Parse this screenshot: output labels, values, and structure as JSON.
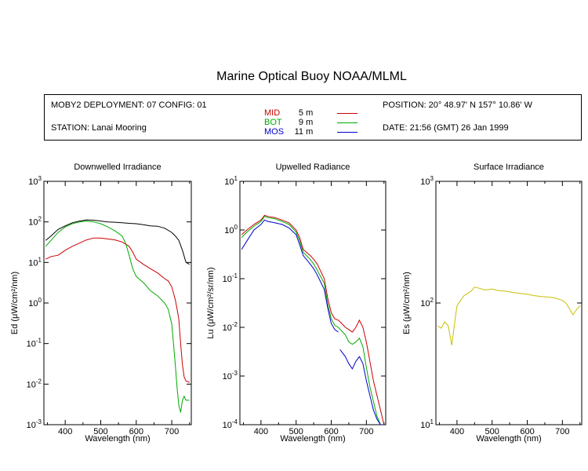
{
  "header": {
    "title": "Marine Optical Buoy NOAA/MLML",
    "deployment": "MOBY2 DEPLOYMENT: 07 CONFIG: 01",
    "station": "STATION: Lanai Mooring",
    "position": "POSITION: 20° 48.97' N   157° 10.86' W",
    "date": "DATE: 21:56 (GMT) 26 Jan 1999"
  },
  "legend": [
    {
      "name": "MID",
      "depth": "5",
      "unit": "m",
      "color": "#cc0000"
    },
    {
      "name": "BOT",
      "depth": "9",
      "unit": "m",
      "color": "#00aa00"
    },
    {
      "name": "MOS",
      "depth": "11",
      "unit": "m",
      "color": "#0000cc"
    }
  ],
  "chart_data": [
    {
      "type": "line",
      "title": "Downwelled Irradiance",
      "xlabel": "Wavelength (nm)",
      "ylabel": "Ed  (μW/cm²/nm)",
      "xlim": [
        340,
        755
      ],
      "ylim": [
        0.001,
        1000
      ],
      "yscale": "log",
      "xticks": [
        400,
        500,
        600,
        700
      ],
      "yticks": [
        {
          "base": "10",
          "exp": "-3",
          "value": 0.001
        },
        {
          "base": "10",
          "exp": "-2",
          "value": 0.01
        },
        {
          "base": "10",
          "exp": "-1",
          "value": 0.1
        },
        {
          "base": "10",
          "exp": "0",
          "value": 1
        },
        {
          "base": "10",
          "exp": "1",
          "value": 10
        },
        {
          "base": "10",
          "exp": "2",
          "value": 100
        },
        {
          "base": "10",
          "exp": "3",
          "value": 1000
        }
      ],
      "series": [
        {
          "name": "MOS",
          "color": "#000000",
          "x": [
            345,
            360,
            380,
            400,
            420,
            440,
            460,
            480,
            500,
            520,
            540,
            560,
            580,
            600,
            620,
            640,
            660,
            680,
            700,
            710,
            720,
            730,
            740,
            750
          ],
          "y": [
            35,
            45,
            65,
            80,
            95,
            105,
            112,
            110,
            105,
            100,
            98,
            95,
            92,
            90,
            85,
            80,
            78,
            70,
            55,
            45,
            35,
            20,
            10,
            9
          ]
        },
        {
          "name": "MID",
          "color": "#cc0000",
          "x": [
            345,
            360,
            380,
            400,
            420,
            440,
            460,
            480,
            500,
            520,
            540,
            560,
            580,
            590,
            600,
            620,
            640,
            660,
            680,
            690,
            700,
            710,
            715,
            720,
            725,
            730,
            735,
            740,
            750
          ],
          "y": [
            12,
            14,
            15,
            20,
            25,
            30,
            36,
            40,
            40,
            38,
            36,
            32,
            25,
            18,
            12,
            9,
            7,
            5.5,
            4,
            3.5,
            2.5,
            1.2,
            0.7,
            0.4,
            0.1,
            0.03,
            0.015,
            0.012,
            0.011
          ]
        },
        {
          "name": "BOT",
          "color": "#00aa00",
          "x": [
            345,
            360,
            380,
            400,
            420,
            440,
            460,
            480,
            500,
            520,
            540,
            560,
            570,
            580,
            590,
            600,
            620,
            640,
            660,
            680,
            690,
            700,
            705,
            710,
            715,
            720,
            725,
            730,
            735,
            740,
            750
          ],
          "y": [
            25,
            35,
            55,
            75,
            90,
            100,
            105,
            100,
            90,
            75,
            60,
            45,
            30,
            15,
            7,
            4.5,
            3.2,
            2,
            1.5,
            1.0,
            0.7,
            0.3,
            0.1,
            0.03,
            0.008,
            0.003,
            0.002,
            0.004,
            0.005,
            0.004,
            0.004
          ]
        }
      ]
    },
    {
      "type": "line",
      "title": "Upwelled Radiance",
      "xlabel": "Wavelength (nm)",
      "ylabel": "Lu  (μW/cm²/sr/nm)",
      "xlim": [
        340,
        755
      ],
      "ylim": [
        0.0001,
        10
      ],
      "yscale": "log",
      "xticks": [
        400,
        500,
        600,
        700
      ],
      "yticks": [
        {
          "base": "10",
          "exp": "-4",
          "value": 0.0001
        },
        {
          "base": "10",
          "exp": "-3",
          "value": 0.001
        },
        {
          "base": "10",
          "exp": "-2",
          "value": 0.01
        },
        {
          "base": "10",
          "exp": "-1",
          "value": 0.1
        },
        {
          "base": "10",
          "exp": "0",
          "value": 1
        },
        {
          "base": "10",
          "exp": "1",
          "value": 10
        }
      ],
      "series": [
        {
          "name": "MID",
          "color": "#cc0000",
          "x": [
            345,
            360,
            380,
            400,
            410,
            420,
            440,
            460,
            480,
            500,
            510,
            520,
            540,
            550,
            560,
            580,
            590,
            600,
            610,
            620,
            630,
            640,
            650,
            660,
            670,
            680,
            690,
            700,
            710,
            720,
            730,
            740,
            750
          ],
          "y": [
            0.8,
            1.0,
            1.3,
            1.6,
            2.0,
            1.9,
            1.8,
            1.6,
            1.4,
            1.0,
            0.7,
            0.4,
            0.3,
            0.25,
            0.2,
            0.1,
            0.04,
            0.02,
            0.015,
            0.014,
            0.012,
            0.01,
            0.009,
            0.008,
            0.01,
            0.014,
            0.01,
            0.005,
            0.002,
            0.0008,
            0.0004,
            0.0002,
            0.0001
          ]
        },
        {
          "name": "BOT",
          "color": "#00aa00",
          "x": [
            345,
            360,
            380,
            400,
            410,
            420,
            440,
            460,
            480,
            500,
            510,
            520,
            540,
            550,
            560,
            580,
            590,
            600,
            610,
            620,
            640,
            650,
            660,
            670,
            680,
            690,
            700,
            710,
            720,
            730,
            740,
            750
          ],
          "y": [
            0.7,
            0.9,
            1.2,
            1.5,
            1.9,
            1.8,
            1.7,
            1.5,
            1.3,
            0.9,
            0.6,
            0.35,
            0.25,
            0.2,
            0.15,
            0.08,
            0.03,
            0.015,
            0.011,
            0.01,
            0.007,
            0.005,
            0.0045,
            0.005,
            0.006,
            0.004,
            0.0015,
            0.0006,
            0.0003,
            0.00015,
            0.0001,
            0.0001
          ]
        },
        {
          "name": "MOS",
          "color": "#0000cc",
          "x": [
            345,
            360,
            380,
            400,
            410,
            420,
            440,
            460,
            480,
            500,
            510,
            520,
            540,
            550,
            560,
            580,
            590,
            600,
            610,
            620
          ],
          "y": [
            0.4,
            0.6,
            1.0,
            1.3,
            1.6,
            1.5,
            1.4,
            1.3,
            1.1,
            0.8,
            0.5,
            0.3,
            0.2,
            0.16,
            0.12,
            0.06,
            0.025,
            0.012,
            0.009,
            0.008
          ]
        },
        {
          "name": "MOS",
          "color": "#0000cc",
          "x": [
            625,
            640,
            650,
            660,
            670,
            680,
            690,
            700,
            710,
            720,
            730,
            740,
            750
          ],
          "y": [
            0.0035,
            0.0025,
            0.0018,
            0.0014,
            0.002,
            0.0025,
            0.0018,
            0.0008,
            0.0004,
            0.0002,
            0.00013,
            0.0001,
            0.0001
          ]
        }
      ]
    },
    {
      "type": "line",
      "title": "Surface Irradiance",
      "xlabel": "Wavelength (nm)",
      "ylabel": "Es  (μW/cm²/nm)",
      "xlim": [
        340,
        755
      ],
      "ylim": [
        10,
        1000
      ],
      "yscale": "log",
      "xticks": [
        400,
        500,
        600,
        700
      ],
      "yticks": [
        {
          "base": "10",
          "exp": "1",
          "value": 10
        },
        {
          "base": "10",
          "exp": "2",
          "value": 100
        },
        {
          "base": "10",
          "exp": "3",
          "value": 1000
        }
      ],
      "series": [
        {
          "name": "",
          "color": "#c8c000",
          "x": [
            345,
            355,
            365,
            375,
            385,
            395,
            400,
            410,
            420,
            440,
            450,
            460,
            480,
            500,
            520,
            540,
            560,
            580,
            600,
            620,
            640,
            660,
            680,
            700,
            710,
            720,
            730,
            740,
            750
          ],
          "y": [
            65,
            62,
            70,
            65,
            45,
            75,
            95,
            105,
            115,
            125,
            135,
            133,
            128,
            130,
            126,
            125,
            122,
            120,
            118,
            115,
            113,
            112,
            110,
            105,
            100,
            90,
            80,
            88,
            95
          ]
        }
      ]
    }
  ]
}
